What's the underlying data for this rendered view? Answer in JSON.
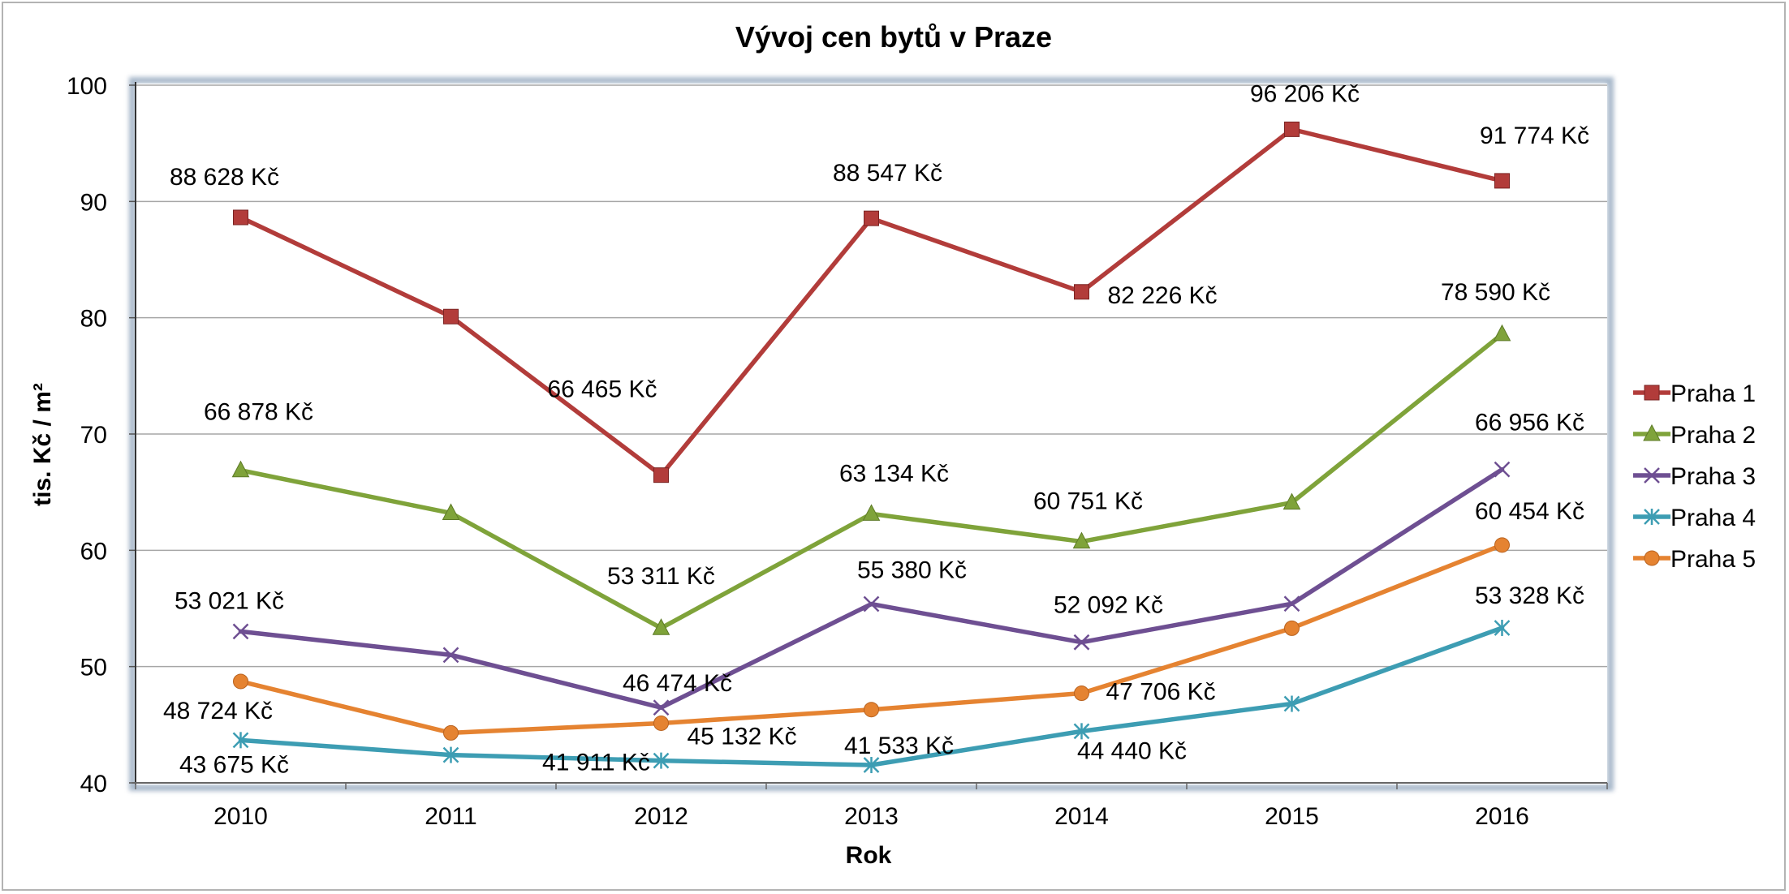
{
  "chart_data": {
    "type": "line",
    "title": "Vývoj cen bytů v Praze",
    "xlabel": "Rok",
    "ylabel": "tis. Kč / m²",
    "ylim": [
      40,
      100
    ],
    "yticks": [
      "40",
      "50",
      "60",
      "70",
      "80",
      "90",
      "100"
    ],
    "categories": [
      "2010",
      "2011",
      "2012",
      "2013",
      "2014",
      "2015",
      "2016"
    ],
    "grid": true,
    "legend_position": "right",
    "series": [
      {
        "name": "Praha 1",
        "color": "#b23c3a",
        "marker": "square",
        "values": [
          88.628,
          80.1,
          66.465,
          88.547,
          82.226,
          96.206,
          91.774
        ],
        "labels": [
          "88 628 Kč",
          null,
          "66 465 Kč",
          "88 547 Kč",
          "82 226 Kč",
          "96 206 Kč",
          "91 774 Kč"
        ]
      },
      {
        "name": "Praha 2",
        "color": "#7fa33a",
        "marker": "triangle",
        "values": [
          66.878,
          63.2,
          53.311,
          63.134,
          60.751,
          64.1,
          78.59
        ],
        "labels": [
          "66 878 Kč",
          null,
          "53 311 Kč",
          "63 134 Kč",
          "60 751 Kč",
          null,
          "78 590 Kč"
        ]
      },
      {
        "name": "Praha 3",
        "color": "#6e4f92",
        "marker": "x",
        "values": [
          53.021,
          51.0,
          46.474,
          55.38,
          52.092,
          55.4,
          66.956
        ],
        "labels": [
          "53 021 Kč",
          null,
          "46 474 Kč",
          "55 380 Kč",
          "52 092 Kč",
          null,
          "66 956 Kč"
        ]
      },
      {
        "name": "Praha 4",
        "color": "#3d9db3",
        "marker": "star",
        "values": [
          43.675,
          42.4,
          41.911,
          41.533,
          44.44,
          46.8,
          53.328
        ],
        "labels": [
          "43 675 Kč",
          null,
          "41 911 Kč",
          "41 533 Kč",
          "44 440 Kč",
          null,
          "53 328 Kč"
        ]
      },
      {
        "name": "Praha 5",
        "color": "#e58331",
        "marker": "circle",
        "values": [
          48.724,
          44.3,
          45.132,
          46.3,
          47.706,
          53.3,
          60.454
        ],
        "labels": [
          "48 724 Kč",
          null,
          "45 132 Kč",
          null,
          "47 706 Kč",
          null,
          "60 454 Kč"
        ]
      }
    ]
  }
}
